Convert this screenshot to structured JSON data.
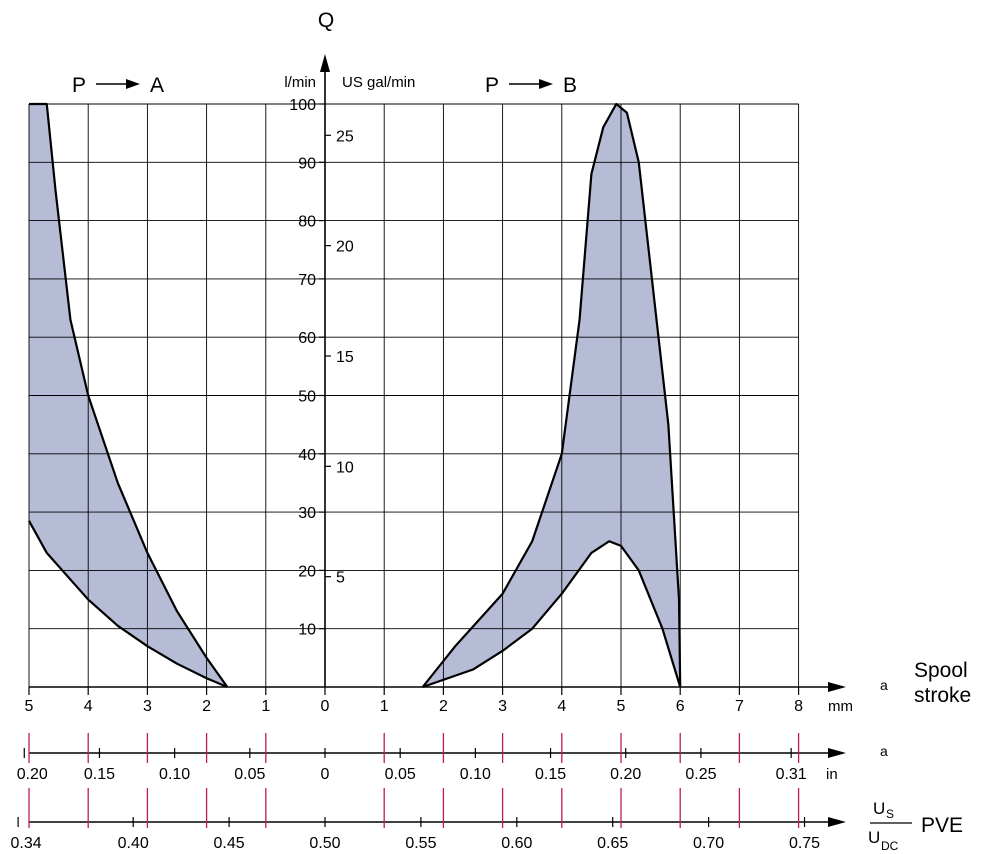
{
  "colors": {
    "fill": "#b6bcd6",
    "curve": "#000000",
    "grid": "#000000",
    "tick_marker": "#c2185b"
  },
  "labels": {
    "q_axis": "Q",
    "lmin_unit": "l/min",
    "usgal_unit": "US gal/min",
    "pa_p": "P",
    "pa_a": "A",
    "pb_p": "P",
    "pb_b": "B",
    "stroke_a": "a",
    "spool_line1": "Spool",
    "spool_line2": "stroke",
    "in_a": "a",
    "mm_unit": "mm",
    "in_unit": "in",
    "us_num_u": "U",
    "us_num_sub": "S",
    "us_den_u": "U",
    "us_den_sub": "DC",
    "pve": "PVE"
  },
  "chart_data": {
    "type": "area",
    "title": "",
    "ylabel": "Q",
    "y_unit": "l/min",
    "y2_unit": "US gal/min",
    "ylim": [
      0,
      100
    ],
    "xlim_mm": [
      -5,
      8
    ],
    "grid": true,
    "lmin_ticks": [
      "10",
      "20",
      "30",
      "40",
      "50",
      "60",
      "70",
      "80",
      "90",
      "100"
    ],
    "usgal_ticks": [
      "5",
      "10",
      "15",
      "20",
      "25"
    ],
    "mm_ticks": [
      "5",
      "4",
      "3",
      "2",
      "1",
      "0",
      "1",
      "2",
      "3",
      "4",
      "5",
      "6",
      "7",
      "8"
    ],
    "in_ticks": [
      "0.20",
      "0.15",
      "0.10",
      "0.05",
      "0",
      "0.05",
      "0.10",
      "0.15",
      "0.20",
      "0.25",
      "0.31"
    ],
    "pve_ticks": [
      "0.34",
      "0.40",
      "0.45",
      "0.50",
      "0.55",
      "0.60",
      "0.65",
      "0.70",
      "0.75"
    ],
    "series": [
      {
        "name": "P → A",
        "upper": [
          [
            -5,
            100
          ],
          [
            -4.7,
            100
          ],
          [
            -4.55,
            85
          ],
          [
            -4.3,
            63
          ],
          [
            -4,
            50
          ],
          [
            -3.5,
            35
          ],
          [
            -3,
            23
          ],
          [
            -2.5,
            13
          ],
          [
            -2,
            5
          ],
          [
            -1.65,
            0
          ]
        ],
        "lower": [
          [
            -5,
            28.5
          ],
          [
            -4.7,
            23
          ],
          [
            -4,
            15
          ],
          [
            -3.5,
            10.5
          ],
          [
            -3,
            7
          ],
          [
            -2.5,
            4
          ],
          [
            -2,
            1.5
          ],
          [
            -1.65,
            0
          ]
        ]
      },
      {
        "name": "P → B",
        "upper": [
          [
            1.65,
            0
          ],
          [
            2.2,
            7
          ],
          [
            3,
            16
          ],
          [
            3.5,
            25
          ],
          [
            4,
            40
          ],
          [
            4.3,
            63
          ],
          [
            4.5,
            88
          ],
          [
            4.7,
            96
          ],
          [
            4.92,
            100
          ],
          [
            5.1,
            98.5
          ],
          [
            5.3,
            90
          ],
          [
            5.5,
            72
          ],
          [
            5.8,
            45
          ],
          [
            5.98,
            15
          ],
          [
            6,
            0
          ]
        ],
        "lower": [
          [
            1.65,
            0
          ],
          [
            2.5,
            3
          ],
          [
            3,
            6.2
          ],
          [
            3.5,
            10
          ],
          [
            4,
            16
          ],
          [
            4.5,
            23
          ],
          [
            4.8,
            25
          ],
          [
            5,
            24.2
          ],
          [
            5.3,
            20
          ],
          [
            5.7,
            10
          ],
          [
            6,
            0
          ]
        ]
      }
    ]
  }
}
